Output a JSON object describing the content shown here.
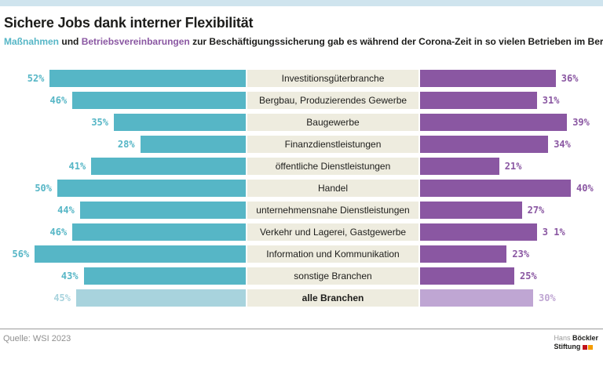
{
  "page": {
    "title": "Sichere Jobs dank interner Flexibilität",
    "subtitle": {
      "term_left": "Maßnahmen",
      "connector": "und",
      "term_right": "Betriebsvereinbarungen",
      "rest": "zur Beschäftigungssicherung gab es während der Corona-Zeit in so vielen Betrieben im Bereich ..."
    }
  },
  "colors": {
    "top_strip": "#cfe4ee",
    "teal": "#56b6c6",
    "teal_muted": "#a8d3dd",
    "purple": "#8a57a2",
    "purple_muted": "#bfa6d3",
    "category_band": "#eeecdf"
  },
  "chart_data": {
    "type": "bar",
    "orientation": "diverging-horizontal",
    "unit": "%",
    "axis_labels_hidden": true,
    "categories": [
      "Investitionsgüterbranche",
      "Bergbau, Produzierendes Gewerbe",
      "Baugewerbe",
      "Finanzdienstleistungen",
      "öffentliche Dienstleistungen",
      "Handel",
      "unternehmensnahe Dienstleistungen",
      "Verkehr und Lagerei, Gastgewerbe",
      "Information und Kommunikation",
      "sonstige Branchen",
      "alle Branchen"
    ],
    "muted_index": 10,
    "series": [
      {
        "name": "Maßnahmen",
        "side": "left",
        "color": "#56b6c6",
        "color_muted": "#a8d3dd",
        "values": [
          52,
          46,
          35,
          28,
          41,
          50,
          44,
          46,
          56,
          43,
          45
        ],
        "value_labels": [
          "52%",
          "46%",
          "35%",
          "28%",
          "41%",
          "50%",
          "44%",
          "46%",
          "56%",
          "43%",
          "45%"
        ]
      },
      {
        "name": "Betriebsvereinbarungen",
        "side": "right",
        "color": "#8a57a2",
        "color_muted": "#bfa6d3",
        "values": [
          36,
          31,
          39,
          34,
          21,
          40,
          27,
          31,
          23,
          25,
          30
        ],
        "value_labels": [
          "36%",
          "31%",
          "39%",
          "34%",
          "21%",
          "40%",
          "27%",
          "3 1%",
          "23%",
          "25%",
          "30%"
        ]
      }
    ]
  },
  "footer": {
    "source": "Quelle: WSI 2023",
    "logo": {
      "line1_light": "Hans",
      "line1_bold": "Böckler",
      "line2_bold": "Stiftung"
    }
  }
}
